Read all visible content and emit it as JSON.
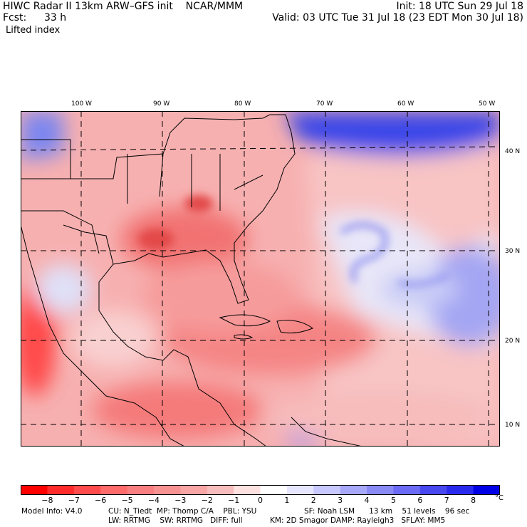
{
  "header": {
    "title": "HIWC Radar II 13km ARW–GFS init    NCAR/MMM",
    "init": "Init: 18 UTC Sun 29 Jul 18",
    "fcst_label": "Fcst:",
    "fcst_value": "33 h",
    "valid": "Valid: 03 UTC Tue 31 Jul 18 (23 EDT Mon 30 Jul 18)",
    "field": "Lifted index"
  },
  "map": {
    "lon_labels": [
      "100 W",
      "90 W",
      "80 W",
      "70 W",
      "60 W",
      "50 W"
    ],
    "lat_labels": [
      "40 N",
      "30 N",
      "20 N",
      "10 N"
    ]
  },
  "colorbar": {
    "ticks": [
      "−8",
      "−7",
      "−6",
      "−5",
      "−4",
      "−3",
      "−2",
      "−1",
      "0",
      "1",
      "2",
      "3",
      "4",
      "5",
      "6",
      "7",
      "8"
    ],
    "unit": "°C",
    "colors": [
      "#ff0000",
      "#ff2b2b",
      "#ff4b4b",
      "#ff6a6a",
      "#f77f7f",
      "#f79292",
      "#f7a5a5",
      "#f7bcbc",
      "#fde0e0",
      "#ffffff",
      "#e6e6ff",
      "#c8c8ff",
      "#a8a8fb",
      "#8a8af5",
      "#6b6bf5",
      "#4848f0",
      "#2a2aee",
      "#0000e6"
    ]
  },
  "model_info": {
    "line1_a": "Model Info: V4.0",
    "line1_b": "CU: N_Tiedt  MP: Thomp C/A    PBL: YSU",
    "line1_c": "SF: Noah LSM      13 km    51 levels    96 sec",
    "line2_a": "LW: RRTMG    SW: RRTMG   DIFF: full",
    "line2_b": "KM: 2D Smagor DAMP: Rayleigh3   SFLAY: MM5"
  }
}
